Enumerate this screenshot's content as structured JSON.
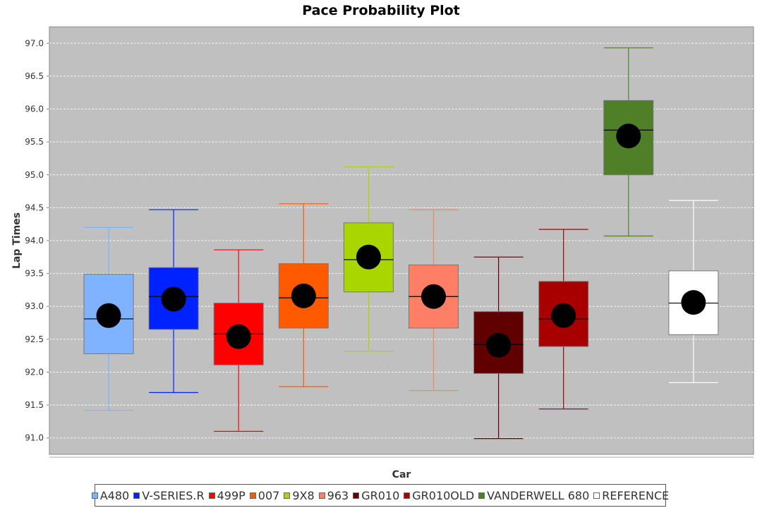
{
  "chart_data": {
    "type": "box",
    "title": "Pace Probability Plot",
    "xlabel": "Car",
    "ylabel": "Lap Times",
    "ylim": [
      90.75,
      97.25
    ],
    "yticks": [
      "91.0",
      "91.5",
      "92.0",
      "92.5",
      "93.0",
      "93.5",
      "94.0",
      "94.5",
      "95.0",
      "95.5",
      "96.0",
      "96.5",
      "97.0"
    ],
    "grid": true,
    "legend_position": "bottom",
    "background_color": "#c0c0c0",
    "series": [
      {
        "name": "A480",
        "color": "#7fb2ff",
        "min": 91.42,
        "q1": 92.28,
        "median": 92.81,
        "q3": 93.49,
        "max": 94.2,
        "mean": 92.86
      },
      {
        "name": "V-SERIES.R",
        "color": "#0022ff",
        "min": 91.69,
        "q1": 92.65,
        "median": 93.15,
        "q3": 93.59,
        "max": 94.47,
        "mean": 93.11
      },
      {
        "name": "499P",
        "color": "#ff0000",
        "min": 91.1,
        "q1": 92.11,
        "median": 92.58,
        "q3": 93.05,
        "max": 93.86,
        "mean": 92.54
      },
      {
        "name": "007",
        "color": "#ff5a00",
        "min": 91.78,
        "q1": 92.67,
        "median": 93.13,
        "q3": 93.65,
        "max": 94.56,
        "mean": 93.16
      },
      {
        "name": "9X8",
        "color": "#aad600",
        "min": 92.32,
        "q1": 93.22,
        "median": 93.71,
        "q3": 94.27,
        "max": 95.12,
        "mean": 93.75
      },
      {
        "name": "963",
        "color": "#ff7f66",
        "min": 91.72,
        "q1": 92.67,
        "median": 93.15,
        "q3": 93.63,
        "max": 94.47,
        "mean": 93.15
      },
      {
        "name": "GR010",
        "color": "#600000",
        "min": 90.99,
        "q1": 91.98,
        "median": 92.42,
        "q3": 92.92,
        "max": 93.75,
        "mean": 92.41
      },
      {
        "name": "GR010OLD",
        "color": "#a80000",
        "min": 91.44,
        "q1": 92.39,
        "median": 92.81,
        "q3": 93.38,
        "max": 94.17,
        "mean": 92.86
      },
      {
        "name": "VANDERWELL 680",
        "color": "#4f7f26",
        "min": 94.07,
        "q1": 95.0,
        "median": 95.68,
        "q3": 96.13,
        "max": 96.93,
        "mean": 95.59
      },
      {
        "name": "REFERENCE",
        "color": "#ffffff",
        "min": 91.84,
        "q1": 92.57,
        "median": 93.05,
        "q3": 93.54,
        "max": 94.61,
        "mean": 93.06
      }
    ]
  }
}
